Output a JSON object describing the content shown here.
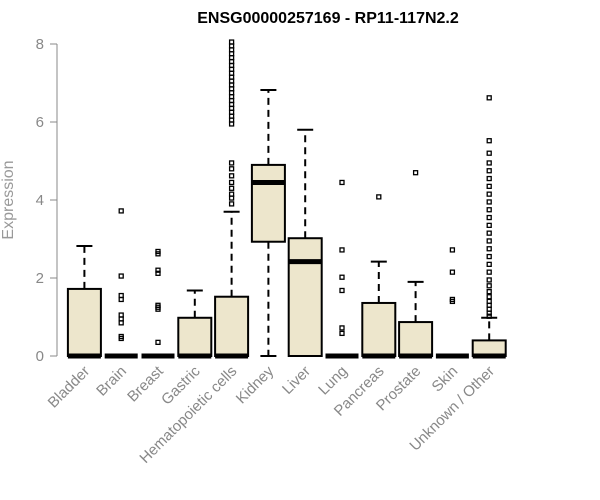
{
  "chart_data": {
    "type": "box",
    "title": "ENSG00000257169 - RP11-117N2.2",
    "xlabel": "",
    "ylabel": "Expression",
    "ylim": [
      0,
      8
    ],
    "yticks": [
      0,
      2,
      4,
      6,
      8
    ],
    "grid": false,
    "colors": {
      "box_fill": "#ede6cc",
      "box_stroke": "#000000",
      "axis": "#888888",
      "title": "#000000"
    },
    "categories": [
      "Bladder",
      "Brain",
      "Breast",
      "Gastric",
      "Hematopoietic cells",
      "Kidney",
      "Liver",
      "Lung",
      "Pancreas",
      "Prostate",
      "Skin",
      "Unknown / Other"
    ],
    "boxes": [
      {
        "name": "Bladder",
        "q1": 0,
        "median": 0,
        "q3": 1.72,
        "whisker_low": 0,
        "whisker_high": 2.82,
        "outliers": []
      },
      {
        "name": "Brain",
        "q1": 0,
        "median": 0,
        "q3": 0,
        "whisker_low": 0,
        "whisker_high": 0,
        "outliers": [
          3.72,
          2.05,
          1.55,
          1.45,
          1.05,
          0.95,
          0.85,
          0.5,
          0.45
        ]
      },
      {
        "name": "Breast",
        "q1": 0,
        "median": 0,
        "q3": 0,
        "whisker_low": 0,
        "whisker_high": 0,
        "outliers": [
          2.68,
          2.62,
          2.2,
          2.12,
          1.3,
          1.25,
          1.2,
          0.35
        ]
      },
      {
        "name": "Gastric",
        "q1": 0,
        "median": 0,
        "q3": 0.98,
        "whisker_low": 0,
        "whisker_high": 1.68,
        "outliers": []
      },
      {
        "name": "Hematopoietic cells",
        "q1": 0,
        "median": 0,
        "q3": 1.52,
        "whisker_low": 0,
        "whisker_high": 3.7,
        "outliers": [
          8.05,
          7.95,
          7.85,
          7.75,
          7.65,
          7.55,
          7.45,
          7.35,
          7.25,
          7.15,
          7.05,
          6.95,
          6.85,
          6.75,
          6.65,
          6.55,
          6.45,
          6.35,
          6.25,
          6.15,
          6.05,
          5.95,
          4.95,
          4.8,
          4.62,
          4.45,
          4.3,
          4.15,
          4.05,
          3.9
        ]
      },
      {
        "name": "Kidney",
        "q1": 2.93,
        "median": 4.45,
        "q3": 4.9,
        "whisker_low": 0,
        "whisker_high": 6.82,
        "outliers": []
      },
      {
        "name": "Liver",
        "q1": 0,
        "median": 2.42,
        "q3": 3.02,
        "whisker_low": 0,
        "whisker_high": 5.8,
        "outliers": []
      },
      {
        "name": "Lung",
        "q1": 0,
        "median": 0,
        "q3": 0,
        "whisker_low": 0,
        "whisker_high": 0,
        "outliers": [
          4.45,
          2.72,
          2.02,
          1.68,
          0.72,
          0.58
        ]
      },
      {
        "name": "Pancreas",
        "q1": 0,
        "median": 0,
        "q3": 1.36,
        "whisker_low": 0,
        "whisker_high": 2.42,
        "outliers": [
          4.08
        ]
      },
      {
        "name": "Prostate",
        "q1": 0,
        "median": 0,
        "q3": 0.87,
        "whisker_low": 0,
        "whisker_high": 1.9,
        "outliers": [
          4.7
        ]
      },
      {
        "name": "Skin",
        "q1": 0,
        "median": 0,
        "q3": 0,
        "whisker_low": 0,
        "whisker_high": 0,
        "outliers": [
          2.72,
          2.15,
          1.45,
          1.4
        ]
      },
      {
        "name": "Unknown / Other",
        "q1": 0,
        "median": 0,
        "q3": 0.4,
        "whisker_low": 0,
        "whisker_high": 0.98,
        "outliers": [
          6.62,
          5.52,
          5.2,
          4.95,
          4.75,
          4.55,
          4.35,
          4.15,
          3.95,
          3.75,
          3.55,
          3.35,
          3.15,
          2.95,
          2.75,
          2.55,
          2.35,
          2.15,
          1.95,
          1.8,
          1.65,
          1.52,
          1.4,
          1.3,
          1.2,
          1.1,
          1.02
        ]
      }
    ]
  }
}
